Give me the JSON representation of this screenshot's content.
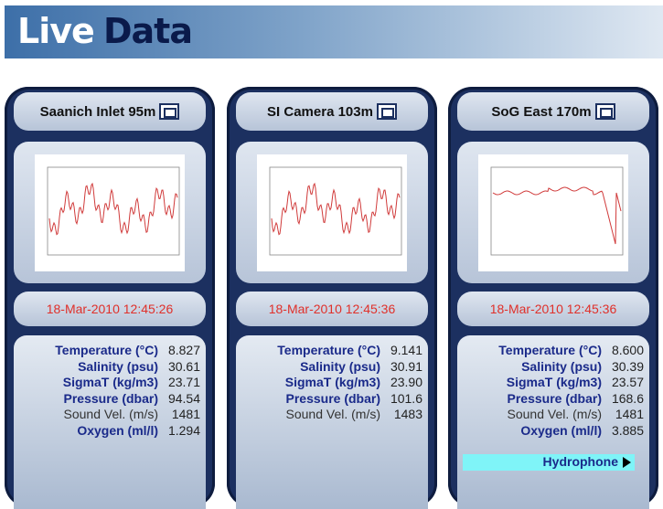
{
  "header": {
    "title_words": [
      "Live",
      "Data"
    ]
  },
  "panels": [
    {
      "title": "Saanich Inlet 95m",
      "timestamp": "18-Mar-2010 12:45:26",
      "readings": [
        {
          "label": "Temperature (°C)",
          "value": "8.827"
        },
        {
          "label": "Salinity (psu)",
          "value": "30.61"
        },
        {
          "label": "SigmaT (kg/m3)",
          "value": "23.71"
        },
        {
          "label": "Pressure (dbar)",
          "value": "94.54"
        },
        {
          "label": "Sound Vel. (m/s)",
          "value": "1481"
        },
        {
          "label": "Oxygen (ml/l)",
          "value": "1.294"
        }
      ]
    },
    {
      "title": "SI Camera 103m",
      "timestamp": "18-Mar-2010 12:45:36",
      "readings": [
        {
          "label": "Temperature (°C)",
          "value": "9.141"
        },
        {
          "label": "Salinity (psu)",
          "value": "30.91"
        },
        {
          "label": "SigmaT (kg/m3)",
          "value": "23.90"
        },
        {
          "label": "Pressure (dbar)",
          "value": "101.6"
        },
        {
          "label": "Sound Vel. (m/s)",
          "value": "1483"
        }
      ]
    },
    {
      "title": "SoG East 170m",
      "timestamp": "18-Mar-2010 12:45:36",
      "readings": [
        {
          "label": "Temperature (°C)",
          "value": "8.600"
        },
        {
          "label": "Salinity (psu)",
          "value": "30.39"
        },
        {
          "label": "SigmaT (kg/m3)",
          "value": "23.57"
        },
        {
          "label": "Pressure (dbar)",
          "value": "168.6"
        },
        {
          "label": "Sound Vel. (m/s)",
          "value": "1481"
        },
        {
          "label": "Oxygen (ml/l)",
          "value": "3.885"
        }
      ],
      "link": "Hydrophone"
    }
  ]
}
